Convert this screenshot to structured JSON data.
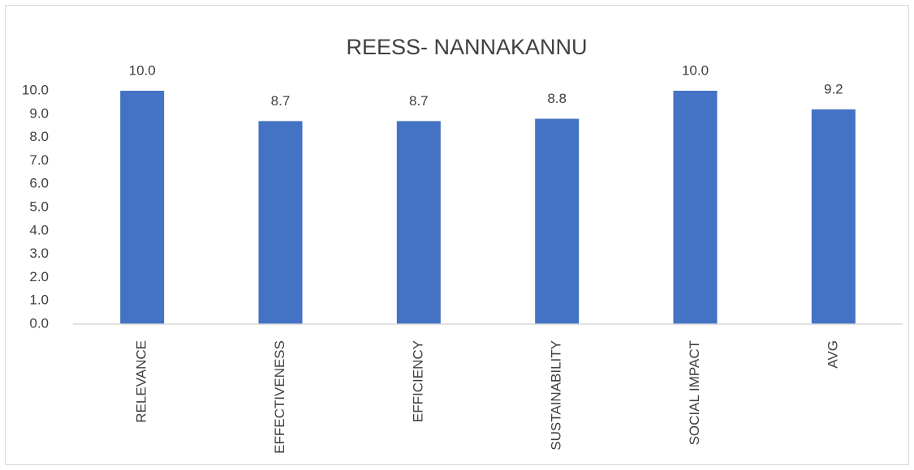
{
  "chart_data": {
    "type": "bar",
    "title": "REESS- NANNAKANNU",
    "categories": [
      "RELEVANCE",
      "EFFECTIVENESS",
      "EFFICIENCY",
      "SUSTAINABILITY",
      "SOCIAL IMPACT",
      "AVG"
    ],
    "values": [
      10,
      8.7,
      8.7,
      8.8,
      10,
      9.2
    ],
    "value_labels": [
      "10.0",
      "8.7",
      "8.7",
      "8.8",
      "10.0",
      "9.2"
    ],
    "color": "#4472c4",
    "ylim": [
      0,
      10
    ],
    "yticks": [
      {
        "value": 0,
        "label": "0.0"
      },
      {
        "value": 1,
        "label": "1.0"
      },
      {
        "value": 2,
        "label": "2.0"
      },
      {
        "value": 3,
        "label": "3.0"
      },
      {
        "value": 4,
        "label": "4.0"
      },
      {
        "value": 5,
        "label": "5.0"
      },
      {
        "value": 6,
        "label": "6.0"
      },
      {
        "value": 7,
        "label": "7.0"
      },
      {
        "value": 8,
        "label": "8.0"
      },
      {
        "value": 9,
        "label": "9.0"
      },
      {
        "value": 10,
        "label": "10.0"
      }
    ],
    "grid": false
  }
}
